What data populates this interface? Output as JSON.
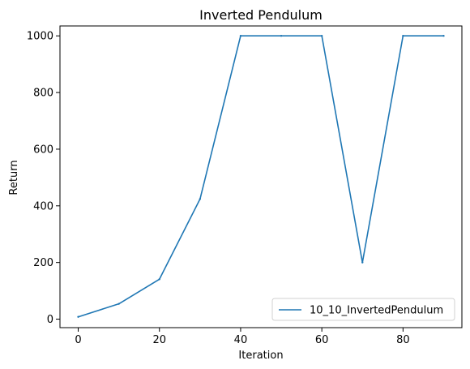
{
  "chart_data": {
    "type": "line",
    "title": "Inverted Pendulum",
    "xlabel": "Iteration",
    "ylabel": "Return",
    "xlim": [
      -4.5,
      94.5
    ],
    "ylim": [
      -30,
      1035
    ],
    "xticks": [
      0,
      20,
      40,
      60,
      80
    ],
    "yticks": [
      0,
      200,
      400,
      600,
      800,
      1000
    ],
    "grid": false,
    "legend_position": "lower-right",
    "x": [
      0,
      10,
      20,
      30,
      40,
      50,
      60,
      70,
      80,
      90
    ],
    "series": [
      {
        "name": "10_10_InvertedPendulum",
        "color": "#1f77b4",
        "values": [
          8,
          54,
          141,
          424,
          1000,
          1000,
          1000,
          200,
          1000,
          1000
        ]
      }
    ]
  }
}
